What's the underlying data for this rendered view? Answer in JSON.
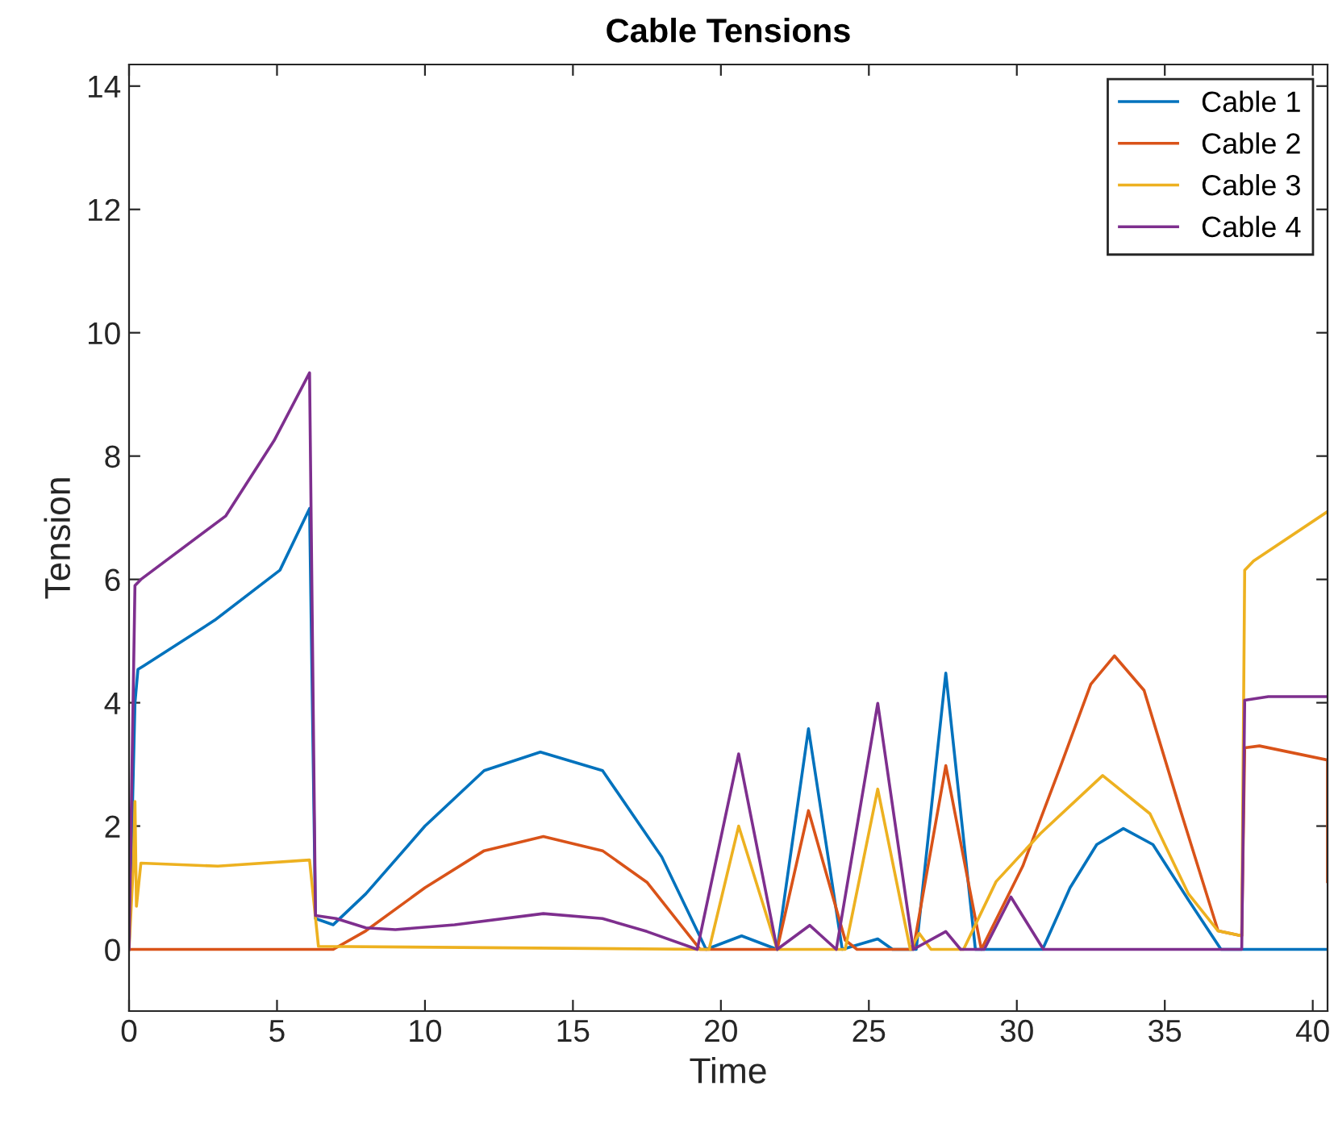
{
  "chart_data": {
    "type": "line",
    "title": "Cable Tensions",
    "xlabel": "Time",
    "ylabel": "Tension",
    "xlim": [
      0,
      40.5
    ],
    "ylim": [
      -1,
      14.35
    ],
    "xticks": [
      0,
      5,
      10,
      15,
      20,
      25,
      30,
      35,
      40
    ],
    "yticks": [
      0,
      2,
      4,
      6,
      8,
      10,
      12,
      14
    ],
    "grid": false,
    "legend": "top right",
    "marker": "none",
    "line_style": "solid",
    "series": [
      {
        "name": "Cable 1",
        "color": "#0072bd",
        "x": [
          0,
          0.2,
          0.3,
          0.5,
          2.9,
          5.1,
          6.1,
          6.3,
          6.9,
          8,
          10,
          12,
          13.9,
          16,
          18,
          19.5,
          20.7,
          21.9,
          22.96,
          24.1,
          25.3,
          25.8,
          26.6,
          27.6,
          28.6,
          30.87,
          31.8,
          32.7,
          33.6,
          34.6,
          35.8,
          36.9,
          40.5
        ],
        "values": [
          0,
          4.0,
          4.54,
          4.6,
          5.34,
          6.15,
          7.15,
          0.5,
          0.4,
          0.9,
          2.0,
          2.9,
          3.2,
          2.9,
          1.5,
          0,
          0.22,
          0,
          3.58,
          0,
          0.17,
          0,
          0,
          4.48,
          0,
          0,
          1.0,
          1.7,
          1.96,
          1.7,
          0.8,
          0,
          0
        ]
      },
      {
        "name": "Cable 2",
        "color": "#d95319",
        "x": [
          0,
          6.9,
          8,
          10,
          12,
          14,
          16,
          17.5,
          19.3,
          21.9,
          22.96,
          24.2,
          24.6,
          26.5,
          27.6,
          28.8,
          30.2,
          31.5,
          32.5,
          33.3,
          34.3,
          35.5,
          36.8,
          37.6,
          37.7,
          38.2,
          40.5,
          40.5
        ],
        "values": [
          0,
          0,
          0.3,
          1.0,
          1.6,
          1.83,
          1.6,
          1.09,
          0,
          0,
          2.25,
          0.15,
          0,
          0,
          2.98,
          0,
          1.35,
          3.0,
          4.3,
          4.76,
          4.2,
          2.3,
          0.3,
          0.22,
          3.27,
          3.3,
          3.07,
          1.1
        ]
      },
      {
        "name": "Cable 3",
        "color": "#edb120",
        "x": [
          0,
          0.15,
          0.2,
          0.25,
          0.4,
          3,
          6.1,
          6.4,
          19.6,
          20.6,
          21.9,
          24.2,
          25.3,
          26.4,
          26.7,
          27.1,
          28.2,
          29.3,
          30.8,
          32.9,
          34.5,
          35.8,
          36.8,
          37.6,
          37.7,
          38,
          40.5
        ],
        "values": [
          0,
          1.4,
          2.4,
          0.7,
          1.4,
          1.35,
          1.45,
          0.05,
          0,
          2.0,
          0,
          0,
          2.6,
          0,
          0.26,
          0,
          0,
          1.1,
          1.88,
          2.82,
          2.2,
          0.9,
          0.3,
          0.22,
          6.15,
          6.3,
          7.1
        ]
      },
      {
        "name": "Cable 4",
        "color": "#7e2f8e",
        "x": [
          0,
          0.2,
          0.4,
          3.27,
          4.9,
          6.1,
          6.3,
          7,
          8,
          9,
          11,
          14,
          16,
          17.5,
          19.2,
          20.6,
          21.9,
          23,
          23.9,
          25.3,
          26.5,
          27.6,
          28.1,
          28.9,
          29.8,
          30.9,
          37.6,
          37.7,
          38.5,
          40.5
        ],
        "values": [
          0,
          5.9,
          6.0,
          7.03,
          8.25,
          9.35,
          0.55,
          0.5,
          0.35,
          0.32,
          0.4,
          0.58,
          0.5,
          0.29,
          0,
          3.17,
          0,
          0.39,
          0,
          3.99,
          0,
          0.29,
          0,
          0,
          0.85,
          0,
          0,
          4.04,
          4.1,
          4.1
        ]
      }
    ]
  }
}
